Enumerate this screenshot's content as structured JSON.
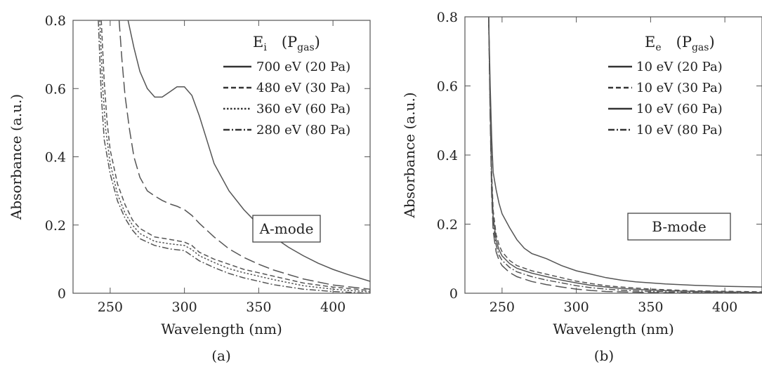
{
  "chart_data": [
    {
      "type": "line",
      "panel": "(a)",
      "xlabel": "Wavelength (nm)",
      "ylabel": "Absorbance (a.u.)",
      "xlim": [
        225,
        425
      ],
      "ylim": [
        0,
        0.8
      ],
      "xticks": [
        250,
        300,
        350,
        400
      ],
      "yticks": [
        0,
        0.2,
        0.4,
        0.6,
        0.8
      ],
      "ytick_labels": [
        "0",
        "0.2",
        "0.4",
        "0.6",
        "0.8"
      ],
      "legend_title": {
        "main": "E",
        "main_sub": "i",
        "paren": "(P",
        "paren_sub": "gas",
        "close": ")"
      },
      "legend_position": "top-right",
      "annotation": "A-mode",
      "series": [
        {
          "name": "700 eV (20 Pa)",
          "dash": "solid",
          "x": [
            262,
            266,
            270,
            275,
            280,
            285,
            290,
            295,
            300,
            305,
            310,
            315,
            320,
            330,
            340,
            350,
            360,
            370,
            380,
            390,
            400,
            410,
            425
          ],
          "y": [
            0.8,
            0.72,
            0.65,
            0.6,
            0.575,
            0.575,
            0.59,
            0.605,
            0.605,
            0.58,
            0.52,
            0.45,
            0.38,
            0.3,
            0.245,
            0.2,
            0.165,
            0.135,
            0.11,
            0.088,
            0.07,
            0.055,
            0.035
          ]
        },
        {
          "name": "480 eV (30 Pa)",
          "dash": "dash",
          "x": [
            244,
            246,
            248,
            250,
            255,
            260,
            265,
            270,
            280,
            290,
            300,
            305,
            310,
            320,
            330,
            340,
            350,
            360,
            380,
            400,
            425
          ],
          "y": [
            0.8,
            0.62,
            0.5,
            0.42,
            0.32,
            0.26,
            0.215,
            0.19,
            0.165,
            0.158,
            0.15,
            0.14,
            0.12,
            0.1,
            0.085,
            0.07,
            0.06,
            0.05,
            0.03,
            0.018,
            0.008
          ]
        },
        {
          "name": "360 eV (60 Pa)",
          "dash": "dot",
          "x": [
            243,
            245,
            247,
            250,
            255,
            260,
            265,
            270,
            280,
            290,
            300,
            305,
            310,
            320,
            330,
            340,
            350,
            360,
            380,
            400,
            425
          ],
          "y": [
            0.8,
            0.6,
            0.48,
            0.38,
            0.29,
            0.235,
            0.2,
            0.175,
            0.152,
            0.145,
            0.14,
            0.128,
            0.11,
            0.09,
            0.072,
            0.06,
            0.05,
            0.04,
            0.022,
            0.012,
            0.004
          ]
        },
        {
          "name": "280 eV (80 Pa)",
          "dash": "dashdot",
          "x": [
            242,
            244,
            246,
            250,
            255,
            260,
            265,
            270,
            280,
            290,
            300,
            305,
            310,
            320,
            330,
            340,
            350,
            360,
            380,
            400,
            425
          ],
          "y": [
            0.8,
            0.58,
            0.45,
            0.35,
            0.27,
            0.22,
            0.185,
            0.16,
            0.14,
            0.13,
            0.125,
            0.11,
            0.095,
            0.075,
            0.058,
            0.045,
            0.035,
            0.025,
            0.012,
            0.005,
            0.0
          ]
        },
        {
          "name": "",
          "dash": "longdash",
          "x": [
            256,
            258,
            260,
            263,
            266,
            270,
            275,
            280,
            285,
            290,
            295,
            300,
            305,
            310,
            320,
            330,
            340,
            350,
            360,
            380,
            400,
            425
          ],
          "y": [
            0.8,
            0.68,
            0.58,
            0.48,
            0.4,
            0.34,
            0.3,
            0.285,
            0.272,
            0.262,
            0.255,
            0.245,
            0.228,
            0.205,
            0.165,
            0.13,
            0.105,
            0.085,
            0.068,
            0.042,
            0.024,
            0.012
          ]
        }
      ]
    },
    {
      "type": "line",
      "panel": "(b)",
      "xlabel": "Wavelength (nm)",
      "ylabel": "Absorbance (a.u.)",
      "xlim": [
        225,
        425
      ],
      "ylim": [
        0,
        0.8
      ],
      "xticks": [
        250,
        300,
        350,
        400
      ],
      "yticks": [
        0,
        0.2,
        0.4,
        0.6,
        0.8
      ],
      "ytick_labels": [
        "0",
        "0.2",
        "0.4",
        "0.6",
        "0.8"
      ],
      "legend_title": {
        "main": "E",
        "main_sub": "e",
        "paren": "(P",
        "paren_sub": "gas",
        "close": ")"
      },
      "legend_position": "top-right",
      "annotation": "B-mode",
      "series": [
        {
          "name": "10 eV (20 Pa)",
          "dash": "solid",
          "x": [
            241,
            242,
            243,
            244,
            246,
            248,
            250,
            255,
            260,
            265,
            270,
            280,
            290,
            300,
            310,
            320,
            330,
            340,
            350,
            360,
            380,
            400,
            425
          ],
          "y": [
            0.8,
            0.6,
            0.45,
            0.35,
            0.3,
            0.26,
            0.23,
            0.19,
            0.155,
            0.13,
            0.115,
            0.1,
            0.08,
            0.065,
            0.055,
            0.045,
            0.038,
            0.033,
            0.03,
            0.027,
            0.023,
            0.02,
            0.018
          ]
        },
        {
          "name": "10 eV (30 Pa)",
          "dash": "dash",
          "x": [
            241,
            242,
            243,
            244,
            246,
            248,
            250,
            255,
            260,
            270,
            280,
            290,
            300,
            310,
            320,
            330,
            350,
            380,
            425
          ],
          "y": [
            0.8,
            0.55,
            0.35,
            0.24,
            0.17,
            0.14,
            0.12,
            0.095,
            0.08,
            0.065,
            0.055,
            0.045,
            0.035,
            0.028,
            0.022,
            0.018,
            0.012,
            0.007,
            0.004
          ]
        },
        {
          "name": "10 eV (60 Pa)",
          "dash": "solid",
          "x": [
            241,
            242,
            243,
            244,
            246,
            248,
            250,
            255,
            260,
            270,
            280,
            290,
            300,
            310,
            320,
            330,
            350,
            380,
            425
          ],
          "y": [
            0.8,
            0.54,
            0.33,
            0.22,
            0.155,
            0.125,
            0.108,
            0.086,
            0.072,
            0.058,
            0.048,
            0.038,
            0.03,
            0.023,
            0.018,
            0.014,
            0.009,
            0.005,
            0.002
          ]
        },
        {
          "name": "10 eV (80 Pa)",
          "dash": "dashdot",
          "x": [
            241,
            242,
            243,
            244,
            246,
            248,
            250,
            255,
            260,
            270,
            280,
            290,
            300,
            310,
            320,
            330,
            350,
            380,
            425
          ],
          "y": [
            0.8,
            0.52,
            0.3,
            0.2,
            0.14,
            0.11,
            0.095,
            0.075,
            0.062,
            0.048,
            0.038,
            0.03,
            0.022,
            0.016,
            0.012,
            0.009,
            0.005,
            0.002,
            0.001
          ]
        },
        {
          "name": "",
          "dash": "longdash",
          "x": [
            241,
            242,
            243,
            244,
            246,
            248,
            250,
            255,
            260,
            270,
            280,
            290,
            300,
            310,
            320,
            330,
            350,
            380,
            425
          ],
          "y": [
            0.8,
            0.5,
            0.28,
            0.18,
            0.12,
            0.095,
            0.08,
            0.06,
            0.048,
            0.034,
            0.025,
            0.018,
            0.012,
            0.008,
            0.005,
            0.004,
            0.002,
            0.001,
            0.0
          ]
        }
      ]
    }
  ],
  "captions": [
    "(a)",
    "(b)"
  ]
}
